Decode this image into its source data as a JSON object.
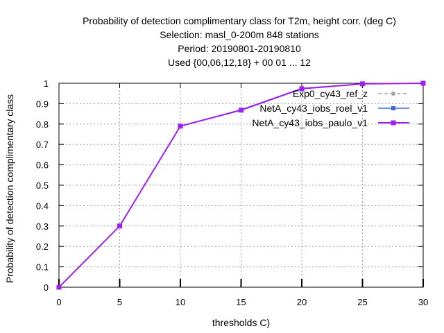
{
  "chart_data": {
    "type": "line",
    "title_lines": [
      "Probability of detection complimentary class  for T2m, height corr. (deg C)",
      "Selection: masl_0-200m    848 stations",
      "Period: 20190801-20190810",
      "Used {00,06,12,18} + 00 01 ... 12"
    ],
    "xlabel": "thresholds C)",
    "ylabel": "Probability of detection complimentary class",
    "xlim": [
      0,
      30
    ],
    "ylim": [
      0,
      1
    ],
    "xticks": [
      0,
      5,
      10,
      15,
      20,
      25,
      30
    ],
    "xtick_labels": [
      "0",
      "5",
      "10",
      "15",
      "20",
      "25",
      "30"
    ],
    "yticks": [
      0,
      0.1,
      0.2,
      0.3,
      0.4,
      0.5,
      0.6,
      0.7,
      0.8,
      0.9,
      1
    ],
    "ytick_labels": [
      "0",
      "0.1",
      "0.2",
      "0.3",
      "0.4",
      "0.5",
      "0.6",
      "0.7",
      "0.8",
      "0.9",
      "1"
    ],
    "grid": true,
    "legend_position": "top-right",
    "x": [
      0,
      5,
      10,
      15,
      20,
      25,
      30
    ],
    "series": [
      {
        "name": "Exp0_cy43_ref_z",
        "color": "#a0a0a0",
        "dash": "dashed",
        "values": [
          0.0,
          0.3,
          0.79,
          0.87,
          0.975,
          0.997,
          1.0
        ]
      },
      {
        "name": "NetA_cy43_iobs_roel_v1",
        "color": "#4169e1",
        "dash": "solid",
        "values": [
          0.0,
          0.3,
          0.79,
          0.87,
          0.975,
          0.997,
          1.0
        ]
      },
      {
        "name": "NetA_cy43_iobs_paulo_v1",
        "color": "#a020f0",
        "dash": "solid",
        "values": [
          0.0,
          0.3,
          0.79,
          0.868,
          0.973,
          0.997,
          1.0
        ]
      }
    ]
  }
}
